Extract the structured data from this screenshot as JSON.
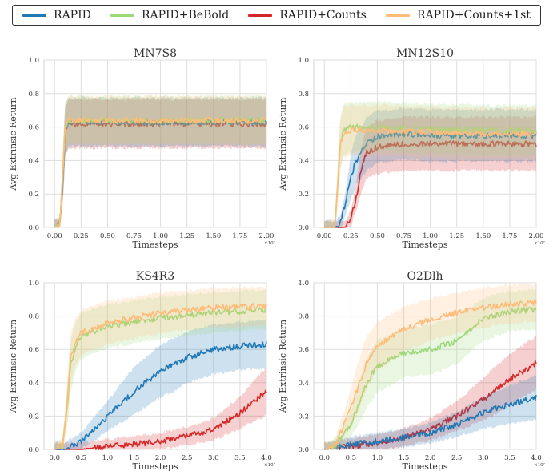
{
  "legend": [
    {
      "name": "RAPID",
      "color": "#1f77b4"
    },
    {
      "name": "RAPID+BeBold",
      "color": "#9bd97a"
    },
    {
      "name": "RAPID+Counts",
      "color": "#d62728"
    },
    {
      "name": "RAPID+Counts+1st",
      "color": "#ffbb78"
    }
  ],
  "chart_data": [
    {
      "type": "line",
      "title": "MN7S8",
      "xlabel": "Timesteps",
      "ylabel": "Avg Extrinsic Return",
      "x_exponent": "×10⁷",
      "xlim": [
        -0.1,
        2.0
      ],
      "ylim": [
        0.0,
        1.0
      ],
      "xticks": [
        "0.00",
        "0.25",
        "0.50",
        "0.75",
        "1.00",
        "1.25",
        "1.50",
        "1.75",
        "2.00"
      ],
      "yticks": [
        "0.0",
        "0.2",
        "0.4",
        "0.6",
        "0.8",
        "1.0"
      ],
      "grid": true,
      "series": [
        {
          "name": "RAPID",
          "color": "#1f77b4",
          "x": [
            0.0,
            0.05,
            0.08,
            0.1,
            0.13,
            0.2,
            0.5,
            1.0,
            1.5,
            2.0
          ],
          "y": [
            0.0,
            0.02,
            0.3,
            0.58,
            0.63,
            0.63,
            0.63,
            0.63,
            0.63,
            0.63
          ]
        },
        {
          "name": "RAPID+BeBold",
          "color": "#9bd97a",
          "x": [
            0.0,
            0.05,
            0.08,
            0.1,
            0.13,
            0.2,
            0.5,
            1.0,
            1.5,
            2.0
          ],
          "y": [
            0.0,
            0.02,
            0.35,
            0.6,
            0.64,
            0.64,
            0.64,
            0.64,
            0.64,
            0.64
          ]
        },
        {
          "name": "RAPID+Counts",
          "color": "#d62728",
          "x": [
            0.0,
            0.05,
            0.08,
            0.1,
            0.13,
            0.2,
            0.5,
            1.0,
            1.5,
            2.0
          ],
          "y": [
            0.0,
            0.02,
            0.3,
            0.57,
            0.62,
            0.62,
            0.62,
            0.62,
            0.62,
            0.62
          ]
        },
        {
          "name": "RAPID+Counts+1st",
          "color": "#ffbb78",
          "x": [
            0.0,
            0.05,
            0.08,
            0.1,
            0.13,
            0.2,
            0.5,
            1.0,
            1.5,
            2.0
          ],
          "y": [
            0.0,
            0.02,
            0.35,
            0.6,
            0.64,
            0.64,
            0.64,
            0.64,
            0.64,
            0.64
          ]
        }
      ]
    },
    {
      "type": "line",
      "title": "MN12S10",
      "xlabel": "Timesteps",
      "ylabel": "Avg Extrinsic Return",
      "x_exponent": "×10⁷",
      "xlim": [
        -0.1,
        2.0
      ],
      "ylim": [
        0.0,
        1.0
      ],
      "xticks": [
        "0.00",
        "0.25",
        "0.50",
        "0.75",
        "1.00",
        "1.25",
        "1.50",
        "1.75",
        "2.00"
      ],
      "yticks": [
        "0.0",
        "0.2",
        "0.4",
        "0.6",
        "0.8",
        "1.0"
      ],
      "grid": true,
      "series": [
        {
          "name": "RAPID",
          "color": "#1f77b4",
          "x": [
            0.0,
            0.1,
            0.15,
            0.2,
            0.25,
            0.3,
            0.4,
            0.5,
            0.75,
            1.0,
            1.5,
            2.0
          ],
          "y": [
            0.0,
            0.0,
            0.02,
            0.15,
            0.3,
            0.4,
            0.5,
            0.54,
            0.56,
            0.55,
            0.55,
            0.55
          ]
        },
        {
          "name": "RAPID+BeBold",
          "color": "#9bd97a",
          "x": [
            0.0,
            0.1,
            0.12,
            0.15,
            0.18,
            0.25,
            0.5,
            1.0,
            1.5,
            2.0
          ],
          "y": [
            0.0,
            0.0,
            0.2,
            0.5,
            0.58,
            0.6,
            0.6,
            0.59,
            0.58,
            0.58
          ]
        },
        {
          "name": "RAPID+Counts",
          "color": "#d62728",
          "x": [
            0.0,
            0.2,
            0.25,
            0.3,
            0.35,
            0.4,
            0.5,
            0.75,
            1.0,
            1.5,
            2.0
          ],
          "y": [
            0.0,
            0.0,
            0.05,
            0.18,
            0.35,
            0.45,
            0.48,
            0.5,
            0.5,
            0.5,
            0.5
          ]
        },
        {
          "name": "RAPID+Counts+1st",
          "color": "#ffbb78",
          "x": [
            0.0,
            0.1,
            0.12,
            0.15,
            0.18,
            0.25,
            0.5,
            1.0,
            1.5,
            2.0
          ],
          "y": [
            0.0,
            0.0,
            0.2,
            0.5,
            0.57,
            0.58,
            0.58,
            0.57,
            0.56,
            0.56
          ]
        }
      ]
    },
    {
      "type": "line",
      "title": "KS4R3",
      "xlabel": "Timesteps",
      "ylabel": "Avg Extrinsic Return",
      "x_exponent": "×10⁷",
      "xlim": [
        -0.2,
        4.0
      ],
      "ylim": [
        0.0,
        1.0
      ],
      "xticks": [
        "0.0",
        "0.5",
        "1.0",
        "1.5",
        "2.0",
        "2.5",
        "3.0",
        "3.5",
        "4.0"
      ],
      "yticks": [
        "0.0",
        "0.2",
        "0.4",
        "0.6",
        "0.8",
        "1.0"
      ],
      "grid": true,
      "series": [
        {
          "name": "RAPID",
          "color": "#1f77b4",
          "x": [
            0.0,
            0.2,
            0.5,
            1.0,
            1.5,
            2.0,
            2.5,
            3.0,
            3.5,
            4.0
          ],
          "y": [
            0.0,
            0.0,
            0.05,
            0.2,
            0.35,
            0.47,
            0.55,
            0.6,
            0.62,
            0.63
          ]
        },
        {
          "name": "RAPID+BeBold",
          "color": "#9bd97a",
          "x": [
            0.0,
            0.15,
            0.25,
            0.3,
            0.4,
            0.5,
            1.0,
            2.0,
            3.0,
            4.0
          ],
          "y": [
            0.0,
            0.02,
            0.3,
            0.5,
            0.62,
            0.68,
            0.74,
            0.79,
            0.82,
            0.84
          ]
        },
        {
          "name": "RAPID+Counts",
          "color": "#d62728",
          "x": [
            0.0,
            0.5,
            1.0,
            1.5,
            2.0,
            2.5,
            3.0,
            3.5,
            4.0
          ],
          "y": [
            0.0,
            0.0,
            0.02,
            0.03,
            0.05,
            0.08,
            0.12,
            0.22,
            0.35
          ]
        },
        {
          "name": "RAPID+Counts+1st",
          "color": "#ffbb78",
          "x": [
            0.0,
            0.15,
            0.25,
            0.3,
            0.4,
            0.5,
            1.0,
            2.0,
            3.0,
            4.0
          ],
          "y": [
            0.0,
            0.02,
            0.32,
            0.55,
            0.65,
            0.7,
            0.76,
            0.82,
            0.85,
            0.86
          ]
        }
      ]
    },
    {
      "type": "line",
      "title": "O2Dlh",
      "xlabel": "Timesteps",
      "ylabel": "Avg Extrinsic Return",
      "x_exponent": "×10⁷",
      "xlim": [
        -0.2,
        4.0
      ],
      "ylim": [
        0.0,
        1.0
      ],
      "xticks": [
        "0.0",
        "0.5",
        "1.0",
        "1.5",
        "2.0",
        "2.5",
        "3.0",
        "3.5",
        "4.0"
      ],
      "yticks": [
        "0.0",
        "0.2",
        "0.4",
        "0.6",
        "0.8",
        "1.0"
      ],
      "grid": true,
      "series": [
        {
          "name": "RAPID",
          "color": "#1f77b4",
          "x": [
            0.0,
            0.2,
            0.5,
            1.0,
            1.5,
            2.0,
            2.5,
            3.0,
            3.5,
            4.0
          ],
          "y": [
            0.0,
            0.01,
            0.03,
            0.05,
            0.07,
            0.1,
            0.15,
            0.22,
            0.27,
            0.31
          ]
        },
        {
          "name": "RAPID+BeBold",
          "color": "#9bd97a",
          "x": [
            0.0,
            0.2,
            0.5,
            0.8,
            1.0,
            1.5,
            2.0,
            2.5,
            3.0,
            3.5,
            4.0
          ],
          "y": [
            0.0,
            0.02,
            0.15,
            0.4,
            0.5,
            0.58,
            0.6,
            0.65,
            0.78,
            0.83,
            0.84
          ]
        },
        {
          "name": "RAPID+Counts",
          "color": "#d62728",
          "x": [
            0.0,
            0.5,
            1.0,
            1.5,
            2.0,
            2.5,
            3.0,
            3.5,
            4.0
          ],
          "y": [
            0.0,
            0.02,
            0.04,
            0.07,
            0.12,
            0.2,
            0.3,
            0.42,
            0.52
          ]
        },
        {
          "name": "RAPID+Counts+1st",
          "color": "#ffbb78",
          "x": [
            0.0,
            0.2,
            0.5,
            0.8,
            1.0,
            1.5,
            2.0,
            2.5,
            3.0,
            3.5,
            4.0
          ],
          "y": [
            0.0,
            0.02,
            0.25,
            0.52,
            0.62,
            0.72,
            0.78,
            0.82,
            0.85,
            0.87,
            0.88
          ]
        }
      ]
    }
  ]
}
